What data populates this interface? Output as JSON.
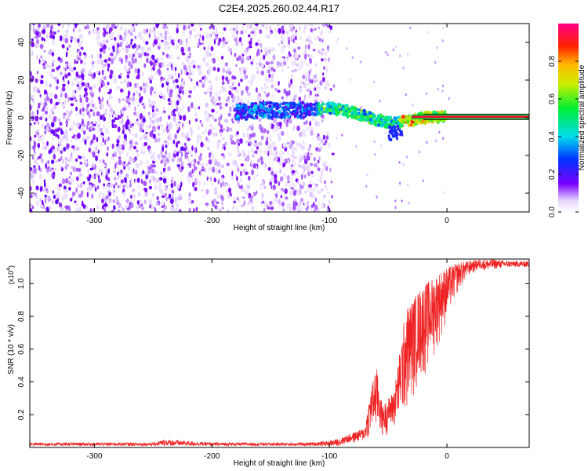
{
  "figure_title": "C2E4.2025.260.02.44.R17",
  "chart_data": [
    {
      "type": "heatmap",
      "title": "C2E4.2025.260.02.44.R17",
      "xlabel": "Height of straight line (km)",
      "ylabel": "Frequency (Hz)",
      "xlim": [
        -355,
        70
      ],
      "ylim": [
        -50,
        50
      ],
      "xticks": [
        -300,
        -200,
        -100,
        0
      ],
      "xtick_labels": [
        "-300",
        "-200",
        "-100",
        "0"
      ],
      "yticks": [
        -40,
        -20,
        0,
        20,
        40
      ],
      "ytick_labels": [
        "-40",
        "-20",
        "0",
        "20",
        "40"
      ],
      "colorbar": {
        "label": "Normalized spectral amplitude",
        "range": [
          0,
          1
        ],
        "ticks": [
          0.0,
          0.2,
          0.4,
          0.6,
          0.8
        ],
        "tick_labels": [
          "0.0",
          "0.2",
          "0.4",
          "0.6",
          "0.8"
        ],
        "colormap": "rainbow"
      },
      "carrier_line": {
        "x_start": -30,
        "x_end": 70,
        "frequency": 0.5,
        "amplitude": 0.9
      },
      "signal_track": [
        {
          "x": -180,
          "f": 3
        },
        {
          "x": -150,
          "f": 4
        },
        {
          "x": -120,
          "f": 4
        },
        {
          "x": -100,
          "f": 5
        },
        {
          "x": -80,
          "f": 3
        },
        {
          "x": -60,
          "f": -1
        },
        {
          "x": -45,
          "f": -3
        },
        {
          "x": -35,
          "f": -2
        },
        {
          "x": -20,
          "f": 0
        },
        {
          "x": 0,
          "f": 1
        }
      ]
    },
    {
      "type": "line",
      "xlabel": "Height of straight line (km)",
      "ylabel": "SNR (10 * v/v)",
      "y_multiplier": "(x10",
      "y_multiplier_exp": "4",
      "y_multiplier_close": ")",
      "xlim": [
        -355,
        70
      ],
      "ylim": [
        0,
        1.15
      ],
      "xticks": [
        -300,
        -200,
        -100,
        0
      ],
      "xtick_labels": [
        "-300",
        "-200",
        "-100",
        "0"
      ],
      "yticks": [
        0.2,
        0.4,
        0.6,
        0.8,
        1.0
      ],
      "ytick_labels": [
        "0.2",
        "0.4",
        "0.6",
        "0.8",
        "1.0"
      ],
      "series": [
        {
          "name": "SNR",
          "color": "#ee2222",
          "envelope_x": [
            -355,
            -250,
            -240,
            -200,
            -150,
            -120,
            -100,
            -90,
            -80,
            -70,
            -65,
            -60,
            -55,
            -50,
            -45,
            -40,
            -35,
            -30,
            -25,
            -20,
            -15,
            -10,
            -5,
            0,
            10,
            20,
            30,
            40,
            50,
            60,
            70
          ],
          "envelope_low": [
            0.01,
            0.01,
            0.01,
            0.01,
            0.01,
            0.01,
            0.01,
            0.01,
            0.02,
            0.03,
            0.05,
            0.06,
            0.05,
            0.08,
            0.1,
            0.12,
            0.15,
            0.25,
            0.35,
            0.4,
            0.45,
            0.55,
            0.65,
            0.75,
            0.95,
            1.05,
            1.08,
            1.09,
            1.1,
            1.1,
            1.1
          ],
          "envelope_high": [
            0.03,
            0.03,
            0.05,
            0.03,
            0.03,
            0.03,
            0.04,
            0.06,
            0.09,
            0.12,
            0.35,
            0.5,
            0.25,
            0.3,
            0.35,
            0.6,
            0.85,
            0.9,
            0.95,
            1.0,
            1.02,
            1.05,
            1.08,
            1.1,
            1.13,
            1.14,
            1.15,
            1.15,
            1.14,
            1.14,
            1.14
          ]
        }
      ]
    }
  ],
  "colors": {
    "background": "#ffffff",
    "axis": "#000000",
    "snr_line": "#ee2222",
    "carrier": "#ee1133"
  }
}
